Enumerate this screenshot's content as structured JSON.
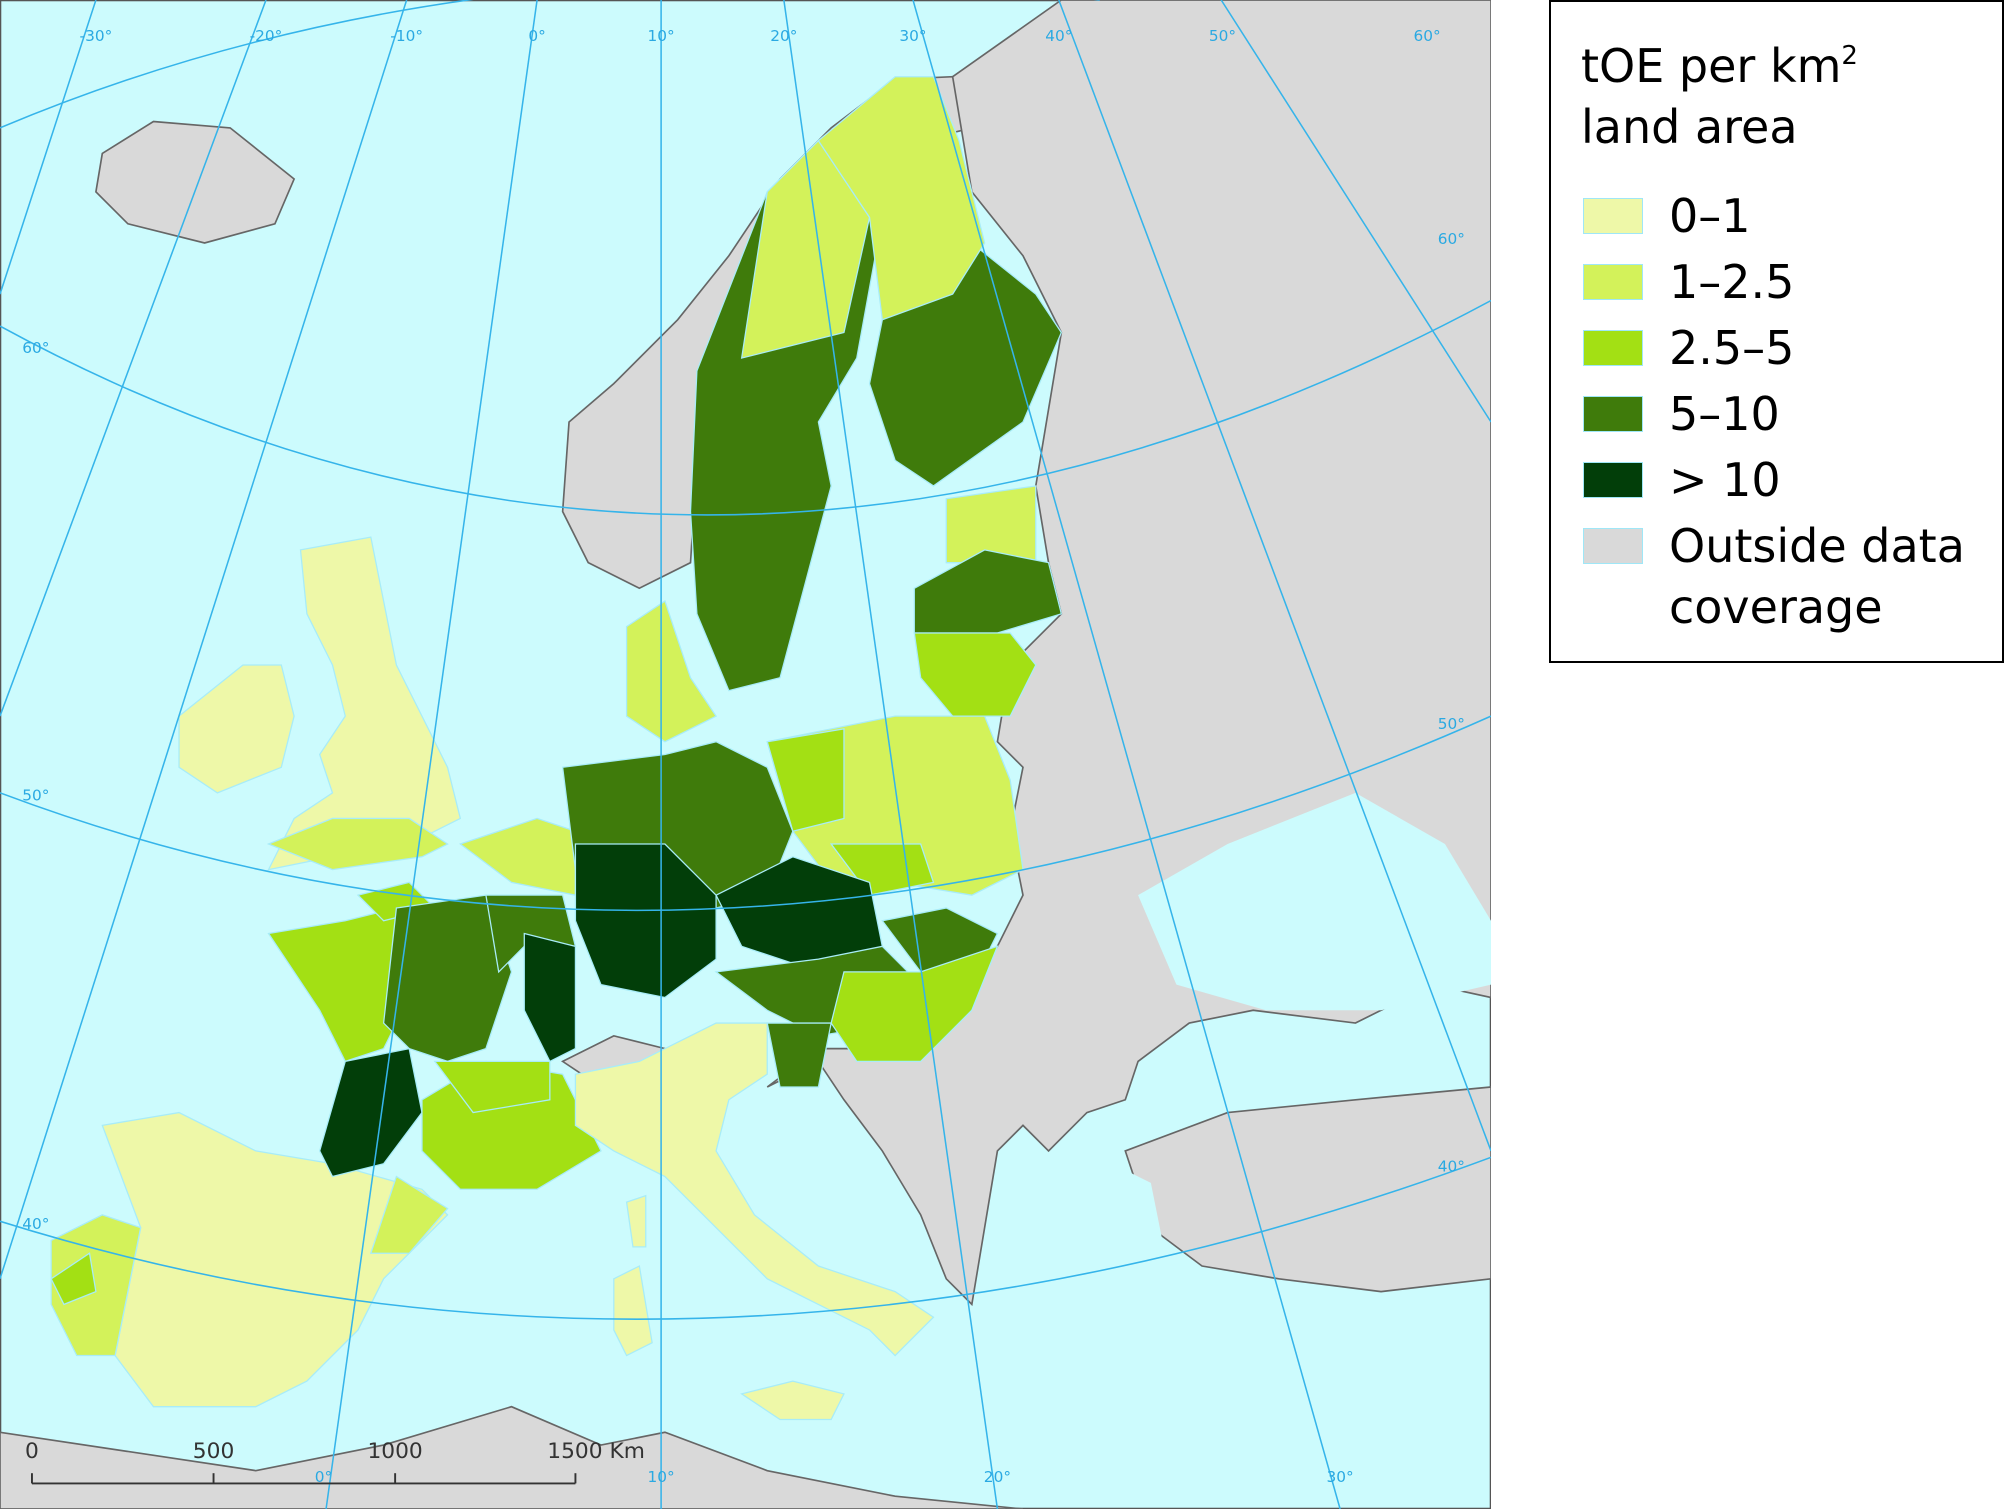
{
  "legend": {
    "title": "tOE per km",
    "title_superscript": "2",
    "title_line2": "land area",
    "items": [
      {
        "label": "0–1",
        "color": "#eef8a8"
      },
      {
        "label": "1–2.5",
        "color": "#d3f25a"
      },
      {
        "label": "2.5–5",
        "color": "#a3e014"
      },
      {
        "label": "5–10",
        "color": "#3f7b0b"
      },
      {
        "label": "> 10",
        "color": "#023e09"
      },
      {
        "label": "Outside data coverage",
        "color": "#d9d9d9"
      }
    ]
  },
  "graticule_labels": {
    "top": [
      "-30°",
      "-20°",
      "-10°",
      "0°",
      "10°",
      "20°",
      "30°",
      "40°",
      "50°",
      "60°"
    ],
    "left": [
      "60°",
      "50°",
      "40°"
    ],
    "right": [
      "60°",
      "50°",
      "40°"
    ],
    "bottom": [
      "0°",
      "10°",
      "20°",
      "30°"
    ]
  },
  "scale_bar": {
    "labels": [
      "0",
      "500",
      "1000",
      "1500 Km"
    ]
  }
}
